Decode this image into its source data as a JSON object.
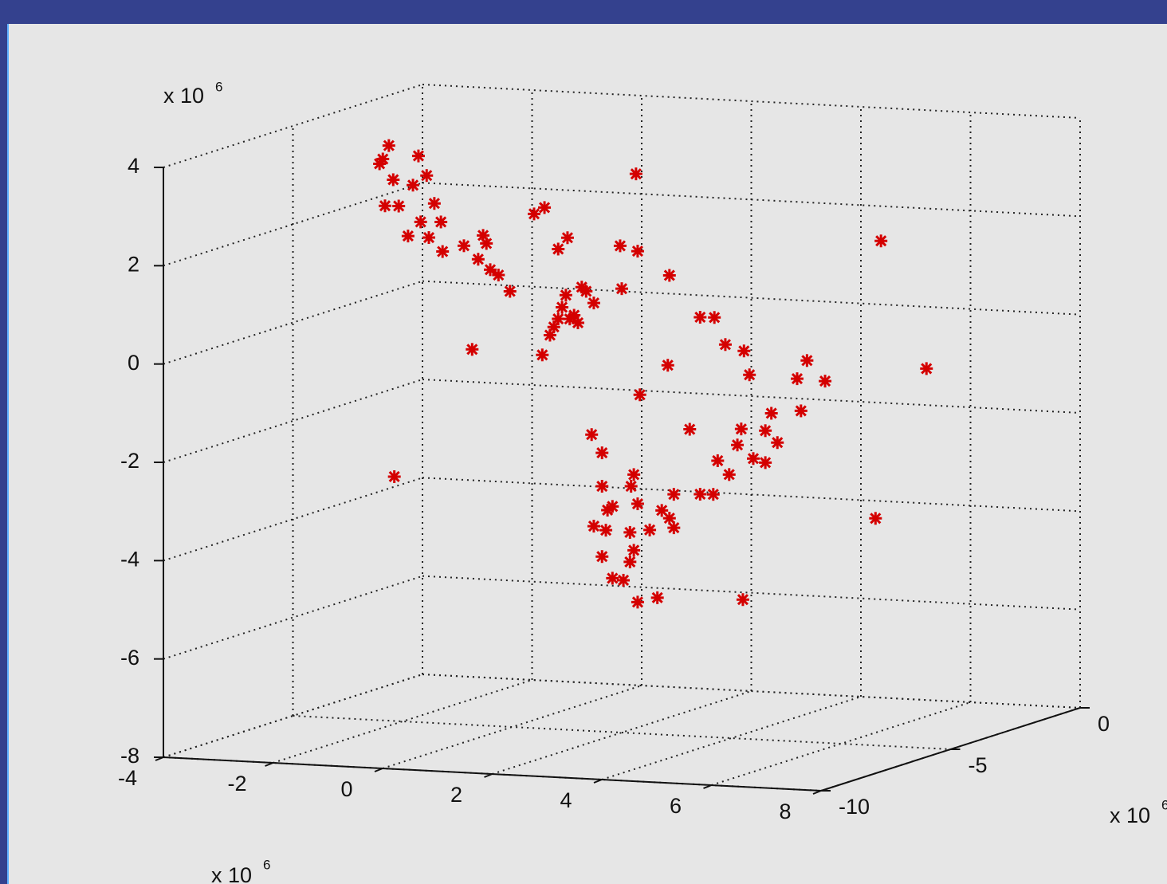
{
  "chart_data": {
    "type": "scatter3d",
    "color": "#d40000",
    "xlim": [
      -4,
      8
    ],
    "ylim": [
      -10,
      0
    ],
    "zlim": [
      -8,
      4
    ],
    "xticks": [
      -4,
      -2,
      0,
      2,
      4,
      6,
      8
    ],
    "yticks": [
      -10,
      -5,
      0
    ],
    "zticks": [
      -8,
      -6,
      -4,
      -2,
      0,
      2,
      4
    ],
    "grid": true,
    "x_multiplier": [
      "x 10",
      "6"
    ],
    "y_multiplier": [
      "x 10",
      "6"
    ],
    "z_multiplier": [
      "x 10",
      "6"
    ],
    "x": [
      -2.42,
      -2.25,
      -2.36,
      -2.17,
      -1.71,
      -1.56,
      -1.81,
      -2.32,
      -2.07,
      -1.42,
      -1.67,
      -1.3,
      -1.9,
      -1.52,
      -1.27,
      -0.88,
      -0.53,
      -0.47,
      -0.62,
      -0.4,
      -0.25,
      -0.04,
      -0.73,
      0.4,
      0.59,
      0.84,
      1.01,
      1.97,
      2.29,
      2.26,
      2.87,
      2.0,
      0.98,
      1.27,
      1.49,
      0.91,
      1.05,
      0.76,
      0.69,
      0.55,
      0.84,
      1.2,
      1.35,
      1.13,
      3.43,
      3.69,
      3.89,
      4.23,
      4.33,
      2.84,
      2.33,
      5.2,
      5.38,
      5.71,
      5.27,
      4.73,
      4.18,
      4.62,
      4.84,
      4.4,
      4.62,
      4.11,
      3.75,
      3.96,
      3.24,
      1.45,
      1.64,
      1.64,
      2.22,
      2.17,
      1.83,
      1.74,
      2.29,
      1.49,
      1.71,
      2.15,
      2.51,
      2.73,
      2.95,
      2.87,
      2.95,
      3.43,
      3.67,
      1.64,
      2.22,
      2.15,
      1.83,
      2.03,
      2.29,
      2.65,
      4.21,
      -2.15,
      6.73,
      7.56,
      6.63
    ],
    "y": [
      -5,
      -5,
      -5,
      -5,
      -5,
      -5,
      -5,
      -5,
      -5,
      -5,
      -5,
      -5,
      -5,
      -5,
      -5,
      -5,
      -5,
      -5,
      -5,
      -5,
      -5,
      -5,
      -5,
      -5,
      -5,
      -5,
      -5,
      -5,
      -5,
      -5,
      -5,
      -5,
      -5,
      -5,
      -5,
      -5,
      -5,
      -5,
      -5,
      -5,
      -5,
      -5,
      -5,
      -5,
      -5,
      -5,
      -5,
      -5,
      -5,
      -5,
      -5,
      -5,
      -5,
      -5,
      -5,
      -5,
      -5,
      -5,
      -5,
      -5,
      -5,
      -5,
      -5,
      -5,
      -5,
      -5,
      -5,
      -5,
      -5,
      -5,
      -5,
      -5,
      -5,
      -5,
      -5,
      -5,
      -5,
      -5,
      -5,
      -5,
      -5,
      -5,
      -5,
      -5,
      -5,
      -5,
      -5,
      -5,
      -5,
      -5,
      -5,
      -5,
      -5,
      -5,
      -5
    ],
    "z": [
      3.32,
      3.7,
      3.42,
      3.01,
      3.52,
      3.13,
      2.92,
      2.47,
      2.48,
      2.57,
      2.18,
      2.2,
      1.88,
      1.87,
      1.6,
      1.74,
      1.97,
      1.81,
      1.48,
      1.28,
      1.18,
      0.86,
      -0.36,
      2.46,
      2.6,
      1.77,
      2.01,
      1.9,
      1.81,
      3.38,
      1.35,
      1.03,
      0.84,
      1.02,
      0.71,
      0.59,
      0.36,
      0.18,
      0.01,
      -0.4,
      0.35,
      0.29,
      0.94,
      0.44,
      0.53,
      0.54,
      0.0,
      -0.11,
      -0.59,
      -0.48,
      -1.11,
      -0.62,
      -0.24,
      -0.64,
      -1.27,
      -1.35,
      -1.7,
      -1.71,
      -1.94,
      -2.29,
      -2.36,
      -2.03,
      -2.37,
      -2.64,
      -1.76,
      -1.97,
      -2.33,
      -3.01,
      -2.74,
      -2.98,
      -3.41,
      -3.49,
      -3.33,
      -3.83,
      -3.9,
      -3.92,
      -3.85,
      -3.44,
      -3.1,
      -3.59,
      -3.78,
      -3.07,
      -3.06,
      -4.44,
      -4.28,
      -4.52,
      -4.87,
      -4.9,
      -5.33,
      -5.22,
      -5.17,
      -3.03,
      2.27,
      -0.28,
      -3.38
    ]
  }
}
